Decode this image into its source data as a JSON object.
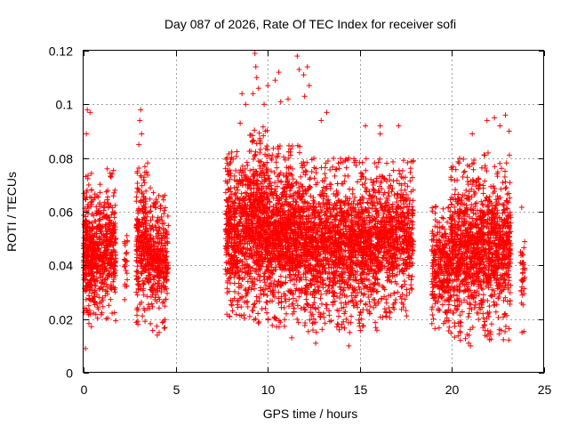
{
  "chart_data": {
    "type": "scatter",
    "title": "Day 087 of 2026, Rate Of TEC Index for receiver sofi",
    "xlabel": "GPS time / hours",
    "ylabel": "ROTI / TECUs",
    "xlim": [
      0,
      25
    ],
    "ylim": [
      0,
      0.12
    ],
    "x_ticks": [
      0,
      5,
      10,
      15,
      20,
      25
    ],
    "x_tick_labels": [
      "0",
      "5",
      "10",
      "15",
      "20",
      "25"
    ],
    "y_ticks": [
      0,
      0.02,
      0.04,
      0.06,
      0.08,
      0.1,
      0.12
    ],
    "y_tick_labels": [
      "0",
      "0.02",
      "0.04",
      "0.06",
      "0.08",
      "0.1",
      "0.12"
    ],
    "grid": true,
    "marker": "+",
    "color": "#ff0000",
    "series": [
      {
        "name": "ROTI",
        "clusters": [
          {
            "x_range": [
              0.0,
              0.5
            ],
            "y_low": 0.015,
            "y_high": 0.075,
            "n": 260
          },
          {
            "x_range": [
              0.5,
              1.1
            ],
            "y_low": 0.018,
            "y_high": 0.072,
            "n": 220
          },
          {
            "x_range": [
              1.1,
              1.75
            ],
            "y_low": 0.017,
            "y_high": 0.077,
            "n": 230
          },
          {
            "x_range": [
              2.2,
              2.4
            ],
            "y_low": 0.025,
            "y_high": 0.065,
            "n": 25
          },
          {
            "x_range": [
              2.85,
              3.5
            ],
            "y_low": 0.018,
            "y_high": 0.08,
            "n": 260
          },
          {
            "x_range": [
              3.5,
              4.6
            ],
            "y_low": 0.015,
            "y_high": 0.07,
            "n": 330
          },
          {
            "x_range": [
              7.7,
              9.0
            ],
            "y_low": 0.02,
            "y_high": 0.085,
            "n": 520
          },
          {
            "x_range": [
              9.0,
              10.0
            ],
            "y_low": 0.018,
            "y_high": 0.095,
            "n": 520
          },
          {
            "x_range": [
              10.0,
              12.0
            ],
            "y_low": 0.017,
            "y_high": 0.085,
            "n": 900
          },
          {
            "x_range": [
              12.0,
              14.0
            ],
            "y_low": 0.015,
            "y_high": 0.08,
            "n": 800
          },
          {
            "x_range": [
              14.0,
              16.0
            ],
            "y_low": 0.015,
            "y_high": 0.08,
            "n": 780
          },
          {
            "x_range": [
              16.0,
              17.9
            ],
            "y_low": 0.02,
            "y_high": 0.08,
            "n": 640
          },
          {
            "x_range": [
              18.9,
              19.9
            ],
            "y_low": 0.015,
            "y_high": 0.065,
            "n": 300
          },
          {
            "x_range": [
              19.9,
              21.5
            ],
            "y_low": 0.012,
            "y_high": 0.08,
            "n": 640
          },
          {
            "x_range": [
              21.5,
              23.2
            ],
            "y_low": 0.012,
            "y_high": 0.082,
            "n": 640
          },
          {
            "x_range": [
              23.7,
              23.95
            ],
            "y_low": 0.015,
            "y_high": 0.062,
            "n": 35
          }
        ],
        "outliers": [
          {
            "x": 0.1,
            "y": 0.009
          },
          {
            "x": 0.2,
            "y": 0.098
          },
          {
            "x": 0.35,
            "y": 0.097
          },
          {
            "x": 0.15,
            "y": 0.089
          },
          {
            "x": 3.1,
            "y": 0.098
          },
          {
            "x": 3.05,
            "y": 0.094
          },
          {
            "x": 3.15,
            "y": 0.089
          },
          {
            "x": 3.0,
            "y": 0.085
          },
          {
            "x": 9.3,
            "y": 0.119
          },
          {
            "x": 9.35,
            "y": 0.114
          },
          {
            "x": 9.4,
            "y": 0.11
          },
          {
            "x": 9.2,
            "y": 0.104
          },
          {
            "x": 8.6,
            "y": 0.104
          },
          {
            "x": 8.8,
            "y": 0.1
          },
          {
            "x": 8.5,
            "y": 0.093
          },
          {
            "x": 9.8,
            "y": 0.1
          },
          {
            "x": 10.6,
            "y": 0.112
          },
          {
            "x": 10.4,
            "y": 0.109
          },
          {
            "x": 10.0,
            "y": 0.107
          },
          {
            "x": 9.5,
            "y": 0.106
          },
          {
            "x": 11.6,
            "y": 0.118
          },
          {
            "x": 11.7,
            "y": 0.113
          },
          {
            "x": 11.95,
            "y": 0.111
          },
          {
            "x": 12.15,
            "y": 0.114
          },
          {
            "x": 12.25,
            "y": 0.107
          },
          {
            "x": 12.0,
            "y": 0.103
          },
          {
            "x": 11.1,
            "y": 0.102
          },
          {
            "x": 10.7,
            "y": 0.101
          },
          {
            "x": 13.2,
            "y": 0.097
          },
          {
            "x": 12.9,
            "y": 0.094
          },
          {
            "x": 15.3,
            "y": 0.092
          },
          {
            "x": 16.1,
            "y": 0.092
          },
          {
            "x": 16.1,
            "y": 0.089
          },
          {
            "x": 17.1,
            "y": 0.092
          },
          {
            "x": 21.9,
            "y": 0.094
          },
          {
            "x": 22.3,
            "y": 0.095
          },
          {
            "x": 22.6,
            "y": 0.092
          },
          {
            "x": 22.9,
            "y": 0.096
          },
          {
            "x": 23.1,
            "y": 0.09
          },
          {
            "x": 21.1,
            "y": 0.089
          },
          {
            "x": 11.3,
            "y": 0.013
          },
          {
            "x": 12.6,
            "y": 0.011
          },
          {
            "x": 14.4,
            "y": 0.01
          },
          {
            "x": 20.9,
            "y": 0.011
          },
          {
            "x": 21.0,
            "y": 0.01
          },
          {
            "x": 4.0,
            "y": 0.014
          },
          {
            "x": 4.1,
            "y": 0.015
          },
          {
            "x": 23.8,
            "y": 0.015
          }
        ]
      }
    ]
  }
}
